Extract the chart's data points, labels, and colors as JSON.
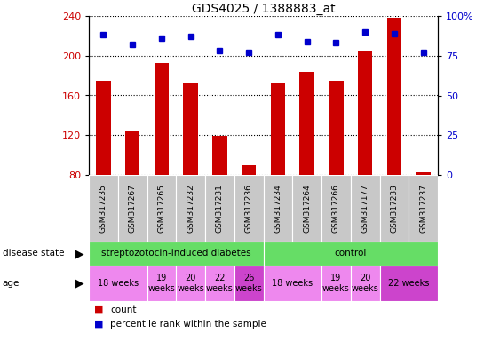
{
  "title": "GDS4025 / 1388883_at",
  "samples": [
    "GSM317235",
    "GSM317267",
    "GSM317265",
    "GSM317232",
    "GSM317231",
    "GSM317236",
    "GSM317234",
    "GSM317264",
    "GSM317266",
    "GSM317177",
    "GSM317233",
    "GSM317237"
  ],
  "counts": [
    175,
    125,
    193,
    172,
    119,
    90,
    173,
    184,
    175,
    205,
    238,
    83
  ],
  "percentiles": [
    88,
    82,
    86,
    87,
    78,
    77,
    88,
    84,
    83,
    90,
    89,
    77
  ],
  "ylim_left": [
    80,
    240
  ],
  "ylim_right": [
    0,
    100
  ],
  "yticks_left": [
    80,
    120,
    160,
    200,
    240
  ],
  "yticks_right": [
    0,
    25,
    50,
    75,
    100
  ],
  "yticklabels_right": [
    "0",
    "25",
    "50",
    "75",
    "100%"
  ],
  "bar_color": "#CC0000",
  "dot_color": "#0000CC",
  "label_bg": "#C8C8C8",
  "disease_groups": [
    {
      "label": "streptozotocin-induced diabetes",
      "start": 0,
      "end": 5,
      "color": "#66DD66"
    },
    {
      "label": "control",
      "start": 6,
      "end": 11,
      "color": "#66DD66"
    }
  ],
  "age_groups": [
    {
      "label": "18 weeks",
      "start": 0,
      "end": 1,
      "color": "#EE88EE"
    },
    {
      "label": "19\nweeks",
      "start": 2,
      "end": 2,
      "color": "#EE88EE"
    },
    {
      "label": "20\nweeks",
      "start": 3,
      "end": 3,
      "color": "#EE88EE"
    },
    {
      "label": "22\nweeks",
      "start": 4,
      "end": 4,
      "color": "#EE88EE"
    },
    {
      "label": "26\nweeks",
      "start": 5,
      "end": 5,
      "color": "#CC44CC"
    },
    {
      "label": "18 weeks",
      "start": 6,
      "end": 7,
      "color": "#EE88EE"
    },
    {
      "label": "19\nweeks",
      "start": 8,
      "end": 8,
      "color": "#EE88EE"
    },
    {
      "label": "20\nweeks",
      "start": 9,
      "end": 9,
      "color": "#EE88EE"
    },
    {
      "label": "22 weeks",
      "start": 10,
      "end": 11,
      "color": "#CC44CC"
    }
  ]
}
